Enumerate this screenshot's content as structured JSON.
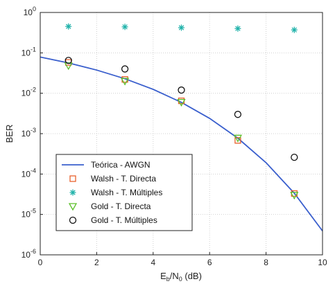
{
  "chart_data": {
    "type": "scatter",
    "title": "",
    "xlabel": "Eb/N0 (dB)",
    "ylabel": "BER",
    "xlim": [
      0,
      10
    ],
    "ylim": [
      1e-06,
      1
    ],
    "yscale": "log",
    "grid": true,
    "legend_position": "bottom-left",
    "x_ticks": [
      "0",
      "2",
      "4",
      "6",
      "8",
      "10"
    ],
    "y_ticks": [
      {
        "base": "10",
        "exp": "0"
      },
      {
        "base": "10",
        "exp": "-1"
      },
      {
        "base": "10",
        "exp": "-2"
      },
      {
        "base": "10",
        "exp": "-3"
      },
      {
        "base": "10",
        "exp": "-4"
      },
      {
        "base": "10",
        "exp": "-5"
      },
      {
        "base": "10",
        "exp": "-6"
      }
    ],
    "series": [
      {
        "name": "Teórica - AWGN",
        "style": "line",
        "color": "#3a5fcd",
        "x": [
          0,
          1,
          2,
          3,
          4,
          5,
          6,
          7,
          8,
          9,
          10
        ],
        "y": [
          0.0786,
          0.0563,
          0.0375,
          0.0229,
          0.0125,
          0.00595,
          0.00239,
          0.000773,
          0.000191,
          3.36e-05,
          3.9e-06
        ]
      },
      {
        "name": "Walsh - T. Directa",
        "style": "square",
        "color": "#e8602c",
        "x": [
          1,
          3,
          5,
          7,
          9
        ],
        "y": [
          0.058,
          0.022,
          0.0065,
          0.00068,
          3.3e-05
        ]
      },
      {
        "name": "Walsh - T. Múltiples",
        "style": "star",
        "color": "#20b2aa",
        "x": [
          1,
          3,
          5,
          7,
          9
        ],
        "y": [
          0.45,
          0.44,
          0.42,
          0.4,
          0.37
        ]
      },
      {
        "name": "Gold - T. Directa",
        "style": "triangle-down",
        "color": "#5cc02a",
        "x": [
          1,
          3,
          5,
          7,
          9
        ],
        "y": [
          0.048,
          0.02,
          0.006,
          0.00078,
          3e-05
        ]
      },
      {
        "name": "Gold - T. Múltiples",
        "style": "circle",
        "color": "#111111",
        "x": [
          1,
          3,
          5,
          7,
          9
        ],
        "y": [
          0.065,
          0.04,
          0.012,
          0.003,
          0.00026
        ]
      }
    ]
  }
}
